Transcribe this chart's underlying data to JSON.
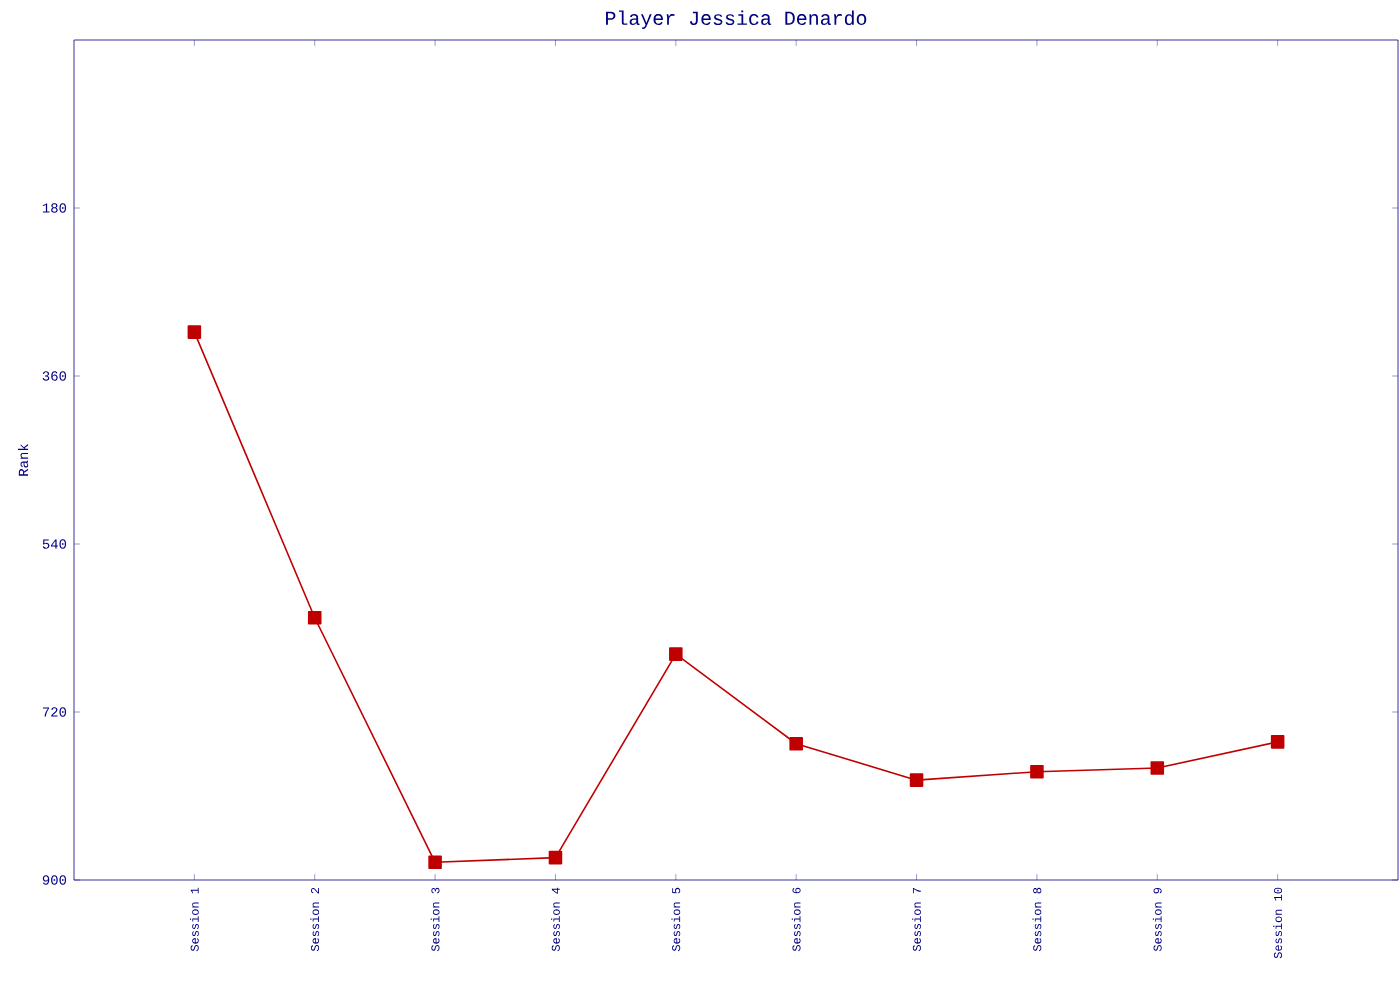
{
  "chart_data": {
    "type": "line",
    "title": "Player Jessica Denardo",
    "ylabel": "Rank",
    "categories": [
      "Session 1",
      "Session 2",
      "Session 3",
      "Session 4",
      "Session 5",
      "Session 6",
      "Session 7",
      "Session 8",
      "Session 9",
      "Session 10"
    ],
    "series": [
      {
        "color": "#c00000",
        "values": [
          313,
          619,
          881,
          876,
          658,
          754,
          793,
          784,
          780,
          752
        ]
      }
    ],
    "ylim": [
      900,
      0
    ],
    "yticks": [
      180,
      360,
      540,
      720,
      900
    ],
    "marker": "square",
    "line_style": "solid",
    "grid": false
  }
}
